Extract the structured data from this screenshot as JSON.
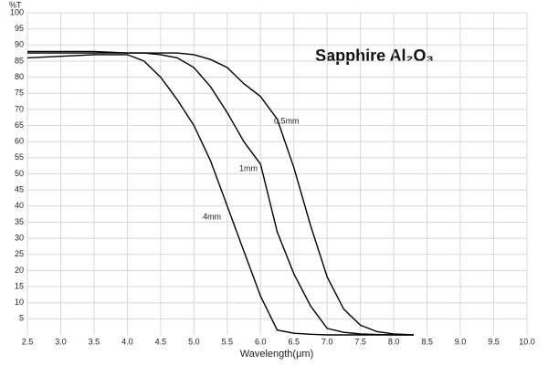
{
  "chart_data": {
    "type": "line",
    "title": "Sapphire Al₂O₃",
    "y_label": "%T",
    "x_label": "Wavelength(μm)",
    "x": [
      2.5,
      3.0,
      3.5,
      4.0,
      4.25,
      4.5,
      4.75,
      5.0,
      5.25,
      5.5,
      5.75,
      6.0,
      6.25,
      6.5,
      6.75,
      7.0,
      7.25,
      7.5,
      7.75,
      8.0,
      8.3
    ],
    "series": [
      {
        "name": "0.5mm",
        "color": "#000000",
        "values": [
          88,
          88,
          88,
          87.5,
          87.5,
          87.5,
          87.5,
          87,
          85.5,
          83,
          78,
          74,
          67,
          52,
          34,
          18,
          8,
          3,
          1,
          0.3,
          0
        ]
      },
      {
        "name": "1mm",
        "color": "#000000",
        "values": [
          87.5,
          87.5,
          87.5,
          87.5,
          87.5,
          87,
          86,
          83,
          77,
          69,
          60,
          53,
          32,
          19,
          9,
          2,
          0.8,
          0.3,
          0.1,
          0,
          0
        ]
      },
      {
        "name": "4mm",
        "color": "#000000",
        "values": [
          86,
          86.5,
          87,
          87,
          85,
          80,
          73,
          65,
          54,
          40,
          26,
          12,
          1.5,
          0.5,
          0.2,
          0,
          0,
          0,
          0,
          0,
          0
        ]
      }
    ],
    "xlim": [
      2.5,
      10.0
    ],
    "ylim": [
      0,
      100
    ],
    "xticks": [
      2.5,
      {
        "value": 3,
        "label": "3.0"
      },
      3.5,
      {
        "value": 4,
        "label": "4.0"
      },
      4.5,
      {
        "value": 5,
        "label": "5.0"
      },
      5.5,
      {
        "value": 6,
        "label": "6.0"
      },
      6.5,
      {
        "value": 7,
        "label": "7.0"
      },
      7.5,
      {
        "value": 8,
        "label": "8.0"
      },
      8.5,
      {
        "value": 9,
        "label": "9.0"
      },
      9.5,
      {
        "value": 10,
        "label": "10.0"
      }
    ],
    "yticks": [
      5,
      10,
      15,
      20,
      25,
      30,
      35,
      40,
      45,
      50,
      55,
      60,
      65,
      70,
      75,
      80,
      85,
      90,
      95,
      100
    ],
    "grid": true
  }
}
